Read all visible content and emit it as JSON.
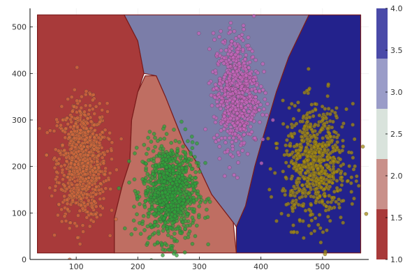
{
  "chart_data": {
    "type": "contour-scatter",
    "title": "",
    "xlabel": "",
    "ylabel": "",
    "xlim": [
      25,
      575
    ],
    "ylim": [
      0,
      540
    ],
    "grid": true,
    "xticks": [
      {
        "v": 100,
        "label": "100"
      },
      {
        "v": 200,
        "label": "200"
      },
      {
        "v": 300,
        "label": "300"
      },
      {
        "v": 400,
        "label": "400"
      },
      {
        "v": 500,
        "label": "500"
      }
    ],
    "yticks": [
      {
        "v": 0,
        "label": "0"
      },
      {
        "v": 100,
        "label": "100"
      },
      {
        "v": 200,
        "label": "200"
      },
      {
        "v": 300,
        "label": "300"
      },
      {
        "v": 400,
        "label": "400"
      },
      {
        "v": 500,
        "label": "500"
      }
    ],
    "domain": {
      "x": [
        37,
        562
      ],
      "y": [
        14,
        526
      ]
    },
    "regions": [
      {
        "name": "class-1",
        "level": 1,
        "color": "#a83a3a",
        "polygon": [
          [
            37,
            14
          ],
          [
            162,
            14
          ],
          [
            162,
            90
          ],
          [
            175,
            160
          ],
          [
            187,
            210
          ],
          [
            190,
            300
          ],
          [
            200,
            360
          ],
          [
            210,
            400
          ],
          [
            200,
            470
          ],
          [
            178,
            526
          ],
          [
            37,
            526
          ]
        ]
      },
      {
        "name": "class-2",
        "level": 2,
        "color": "#bf6e62",
        "polygon": [
          [
            162,
            14
          ],
          [
            360,
            14
          ],
          [
            355,
            80
          ],
          [
            320,
            140
          ],
          [
            295,
            210
          ],
          [
            275,
            250
          ],
          [
            260,
            300
          ],
          [
            245,
            350
          ],
          [
            230,
            395
          ],
          [
            212,
            395
          ],
          [
            200,
            360
          ],
          [
            190,
            300
          ],
          [
            187,
            210
          ],
          [
            175,
            160
          ],
          [
            162,
            90
          ]
        ]
      },
      {
        "name": "class-3",
        "level": 3,
        "color": "#7b7da8",
        "polygon": [
          [
            178,
            526
          ],
          [
            200,
            470
          ],
          [
            210,
            400
          ],
          [
            230,
            395
          ],
          [
            245,
            350
          ],
          [
            260,
            300
          ],
          [
            275,
            250
          ],
          [
            295,
            210
          ],
          [
            320,
            140
          ],
          [
            355,
            80
          ],
          [
            360,
            70
          ],
          [
            375,
            115
          ],
          [
            390,
            200
          ],
          [
            405,
            270
          ],
          [
            425,
            360
          ],
          [
            445,
            435
          ],
          [
            478,
            526
          ]
        ]
      },
      {
        "name": "class-4",
        "level": 4,
        "color": "#23228c",
        "polygon": [
          [
            360,
            14
          ],
          [
            562,
            14
          ],
          [
            562,
            526
          ],
          [
            478,
            526
          ],
          [
            445,
            435
          ],
          [
            425,
            360
          ],
          [
            405,
            270
          ],
          [
            390,
            200
          ],
          [
            375,
            115
          ],
          [
            360,
            70
          ]
        ]
      }
    ],
    "series": [
      {
        "cluster": 1,
        "color": "#d2693c",
        "cx": 110,
        "cy": 210,
        "sx": 20,
        "sy": 62,
        "n": 900
      },
      {
        "cluster": 2,
        "color": "#2fa13a",
        "cx": 252,
        "cy": 145,
        "sx": 22,
        "sy": 52,
        "n": 900
      },
      {
        "cluster": 3,
        "color": "#c765bc",
        "cx": 360,
        "cy": 360,
        "sx": 18,
        "sy": 60,
        "n": 700
      },
      {
        "cluster": 4,
        "color": "#a48a12",
        "cx": 488,
        "cy": 205,
        "sx": 26,
        "sy": 62,
        "n": 700
      }
    ],
    "colorbar": {
      "range": [
        1.0,
        4.0
      ],
      "ticks": [
        {
          "v": 1.0,
          "label": "1.0"
        },
        {
          "v": 1.5,
          "label": "1.5"
        },
        {
          "v": 2.0,
          "label": "2.0"
        },
        {
          "v": 2.5,
          "label": "2.5"
        },
        {
          "v": 3.0,
          "label": "3.0"
        },
        {
          "v": 3.5,
          "label": "3.5"
        },
        {
          "v": 4.0,
          "label": "4.0"
        }
      ],
      "bands": [
        {
          "from": 1.0,
          "to": 1.6,
          "color": "#a83a3a"
        },
        {
          "from": 1.6,
          "to": 2.2,
          "color": "#c9908a"
        },
        {
          "from": 2.2,
          "to": 2.8,
          "color": "#d9e3dc"
        },
        {
          "from": 2.8,
          "to": 3.4,
          "color": "#9a9cc8"
        },
        {
          "from": 3.4,
          "to": 4.0,
          "color": "#4a4aa8"
        }
      ]
    }
  }
}
